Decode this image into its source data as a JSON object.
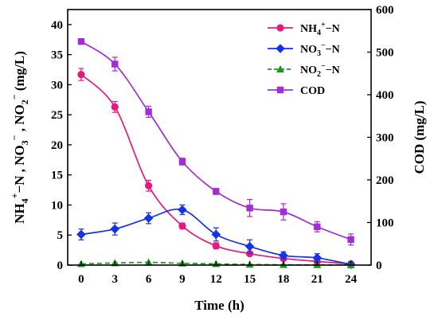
{
  "chart_data": {
    "type": "line",
    "title": "",
    "xlabel": "Time (h)",
    "ylabel_left": {
      "sp1": "NH",
      "sub1": "4",
      "sup1": "+",
      "rest1": "−N , NO",
      "sub2": "3",
      "sup2": "−",
      "rest2": " , NO",
      "sub3": "2",
      "sup3": "−",
      "rest3": " (mg/L)"
    },
    "ylabel_right": "COD (mg/L)",
    "x_ticks": [
      0,
      3,
      6,
      9,
      12,
      15,
      18,
      21,
      24
    ],
    "x_tick_labels": [
      "0",
      "3",
      "6",
      "9",
      "12",
      "15",
      "18",
      "21",
      "24"
    ],
    "xlim": [
      -1.2,
      25.8
    ],
    "ylim_left": [
      0,
      42.5
    ],
    "ylim_right": [
      0,
      600
    ],
    "left_ticks": [
      0,
      5,
      10,
      15,
      20,
      25,
      30,
      35,
      40
    ],
    "left_tick_labels": [
      "0",
      "5",
      "10",
      "15",
      "20",
      "25",
      "30",
      "35",
      "40"
    ],
    "right_ticks": [
      0,
      100,
      200,
      300,
      400,
      500,
      600
    ],
    "right_tick_labels": [
      "0",
      "100",
      "200",
      "300",
      "400",
      "500",
      "600"
    ],
    "grid": false,
    "legend_position": "top-right",
    "series": [
      {
        "key": "nh4",
        "label": {
          "main": "NH",
          "sub": "4",
          "sup": "+",
          "tail": "−N"
        },
        "axis": "left",
        "color": "#e8187e",
        "marker": "circle",
        "dash": "solid",
        "x": [
          0,
          3,
          6,
          9,
          12,
          15,
          18,
          21,
          24
        ],
        "y": [
          31.7,
          26.3,
          13.2,
          6.5,
          3.2,
          1.9,
          1.1,
          0.6,
          0.2
        ],
        "err": [
          1.0,
          0.9,
          0.9,
          0.5,
          0.5,
          0.3,
          0.3,
          0.2,
          0.1
        ]
      },
      {
        "key": "no3",
        "label": {
          "main": "NO",
          "sub": "3",
          "sup": "−",
          "tail": "−N"
        },
        "axis": "left",
        "color": "#1432e6",
        "marker": "diamond",
        "dash": "solid",
        "x": [
          0,
          3,
          6,
          9,
          12,
          15,
          18,
          21,
          24
        ],
        "y": [
          5.1,
          6.0,
          7.8,
          9.2,
          5.1,
          3.1,
          1.6,
          1.2,
          0.1
        ],
        "err": [
          0.9,
          1.0,
          0.9,
          0.8,
          1.1,
          1.1,
          0.6,
          0.7,
          0.1
        ]
      },
      {
        "key": "no2",
        "label": {
          "main": "NO",
          "sub": "2",
          "sup": "−",
          "tail": "−N"
        },
        "axis": "left",
        "color": "#1a9a1a",
        "marker": "triangle",
        "dash": "dashed",
        "x": [
          0,
          3,
          6,
          9,
          12,
          15,
          18,
          21,
          24
        ],
        "y": [
          0.2,
          0.35,
          0.45,
          0.3,
          0.2,
          0.1,
          0.05,
          0.03,
          0.02
        ],
        "err": [
          0.05,
          0.05,
          0.05,
          0.05,
          0.05,
          0.03,
          0.02,
          0.02,
          0.02
        ]
      },
      {
        "key": "cod",
        "label": {
          "main": "COD",
          "sub": "",
          "sup": "",
          "tail": ""
        },
        "axis": "right",
        "color": "#a22dd8",
        "marker": "square",
        "dash": "solid",
        "x": [
          0,
          3,
          6,
          9,
          12,
          15,
          18,
          21,
          24
        ],
        "y": [
          525,
          472,
          360,
          243,
          173,
          134,
          125,
          90,
          60
        ],
        "err": [
          4,
          16,
          13,
          8,
          7,
          20,
          19,
          12,
          13
        ]
      }
    ]
  }
}
